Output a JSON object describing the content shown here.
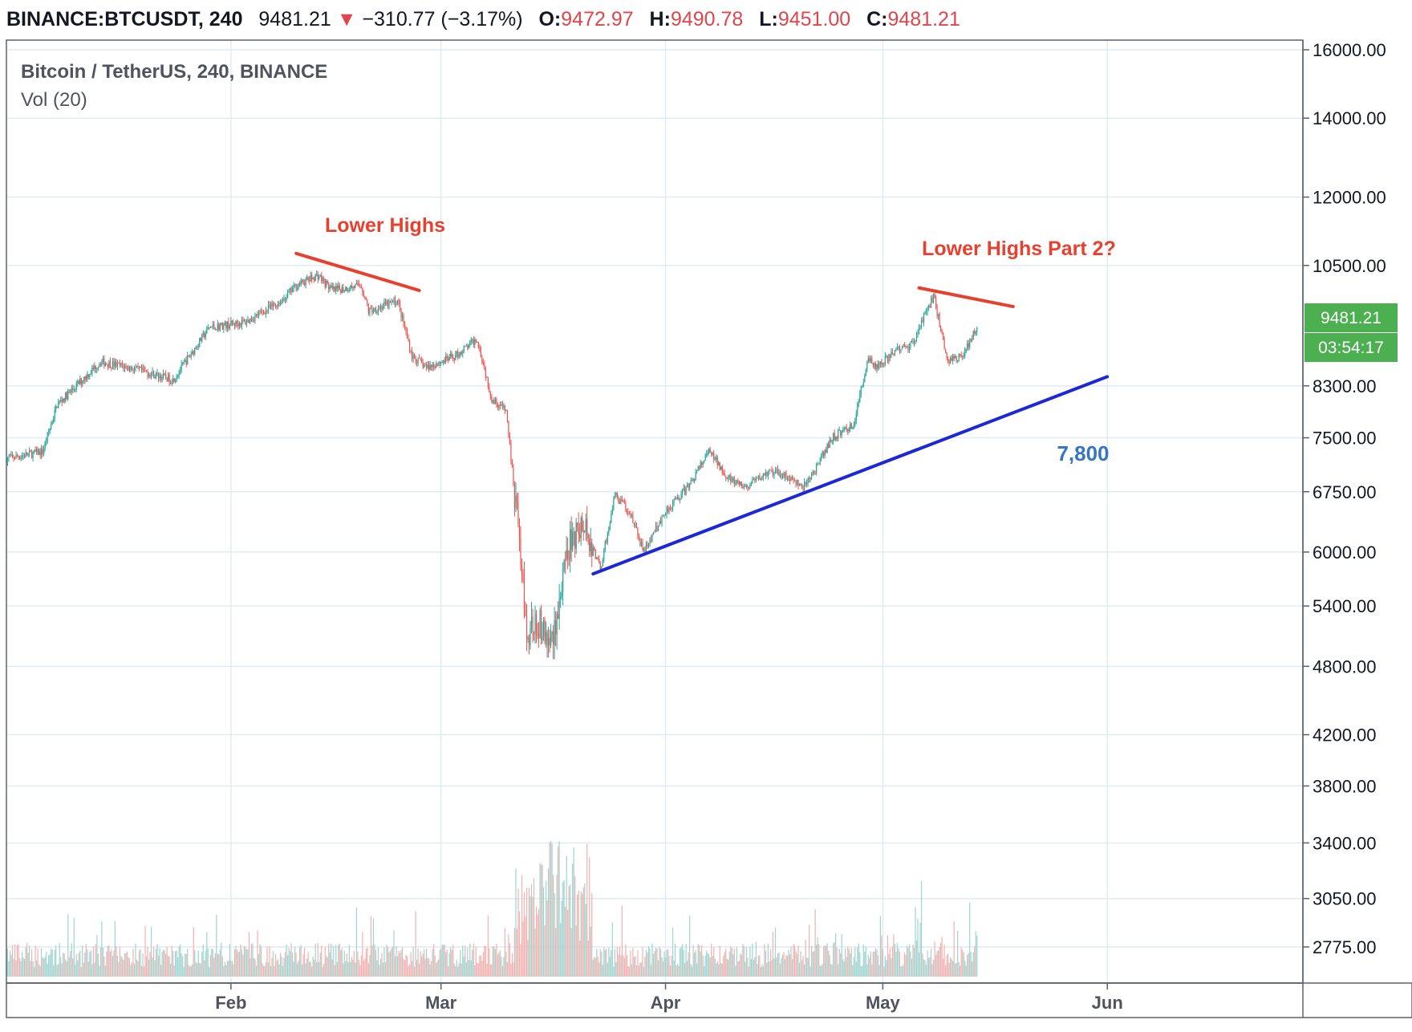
{
  "header": {
    "symbol": "BINANCE:BTCUSDT, 240",
    "last": "9481.21",
    "change": "−310.77 (−3.17%)",
    "open_label": "O:",
    "open": "9472.97",
    "high_label": "H:",
    "high": "9490.78",
    "low_label": "L:",
    "low": "9451.00",
    "close_label": "C:",
    "close": "9481.21"
  },
  "legend": {
    "instrument": "Bitcoin / TetherUS, 240, BINANCE",
    "volume": "Vol (20)"
  },
  "chart_data": {
    "type": "candlestick",
    "symbol": "Bitcoin / TetherUS",
    "timeframe": "240",
    "exchange": "BINANCE",
    "y_scale": "log",
    "ylim": [
      2500,
      16000
    ],
    "y_ticks": [
      "16000.00",
      "14000.00",
      "12000.00",
      "10500.00",
      "8300.00",
      "7500.00",
      "6750.00",
      "6000.00",
      "5400.00",
      "4800.00",
      "4200.00",
      "3800.00",
      "3400.00",
      "3050.00",
      "2775.00"
    ],
    "x_ticks": [
      "Feb",
      "Mar",
      "Apr",
      "May",
      "Jun"
    ],
    "x_tick_dates": [
      "2020-02-01",
      "2020-03-01",
      "2020-04-01",
      "2020-05-01",
      "2020-06-01"
    ],
    "x_range": [
      "2020-01-01",
      "2020-06-28"
    ],
    "grid": true,
    "price_series": {
      "name": "",
      "x": [
        "2020-01-01",
        "2020-01-06",
        "2020-01-08",
        "2020-01-14",
        "2020-01-18",
        "2020-01-24",
        "2020-01-29",
        "2020-02-03",
        "2020-02-08",
        "2020-02-10",
        "2020-02-13",
        "2020-02-15",
        "2020-02-19",
        "2020-02-20",
        "2020-02-24",
        "2020-02-26",
        "2020-02-28",
        "2020-03-03",
        "2020-03-06",
        "2020-03-08",
        "2020-03-10",
        "2020-03-12",
        "2020-03-13",
        "2020-03-14",
        "2020-03-16",
        "2020-03-17",
        "2020-03-19",
        "2020-03-21",
        "2020-03-23",
        "2020-03-25",
        "2020-03-27",
        "2020-03-29",
        "2020-04-01",
        "2020-04-04",
        "2020-04-07",
        "2020-04-10",
        "2020-04-12",
        "2020-04-15",
        "2020-04-17",
        "2020-04-20",
        "2020-04-22",
        "2020-04-24",
        "2020-04-27",
        "2020-04-29",
        "2020-04-30",
        "2020-05-03",
        "2020-05-05",
        "2020-05-08",
        "2020-05-10",
        "2020-05-12",
        "2020-05-14"
      ],
      "y": [
        7200,
        7300,
        8000,
        8700,
        8600,
        8400,
        9300,
        9400,
        9800,
        10100,
        10300,
        10000,
        10100,
        9600,
        9800,
        8800,
        8600,
        8800,
        9100,
        8100,
        7900,
        6000,
        5000,
        5300,
        5000,
        5300,
        6200,
        6300,
        5800,
        6700,
        6500,
        6000,
        6500,
        6800,
        7300,
        6900,
        6800,
        7000,
        7000,
        6800,
        7100,
        7500,
        7700,
        8800,
        8600,
        8900,
        9000,
        9900,
        8700,
        8800,
        9300
      ]
    },
    "volume_series": {
      "name": "Vol (20)"
    },
    "last_price": "9481.21",
    "countdown": "03:54:17",
    "annotations": [
      {
        "text": "Lower Highs",
        "color": "#e8402f",
        "line": {
          "from": [
            "2020-02-10",
            10750
          ],
          "to": [
            "2020-02-27",
            10000
          ]
        }
      },
      {
        "text": "Lower Highs Part 2?",
        "color": "#e8402f",
        "line": {
          "from": [
            "2020-05-06",
            10050
          ],
          "to": [
            "2020-05-19",
            9690
          ]
        }
      },
      {
        "text": "7,800",
        "color": "#3775c4",
        "line": {
          "from": [
            "2020-03-22",
            5750
          ],
          "to": [
            "2020-06-01",
            8450
          ]
        }
      }
    ]
  },
  "colors": {
    "up": "#26a69a",
    "down": "#ef5350",
    "up_vol": "#9fd4cf",
    "down_vol": "#f3b1b0",
    "grid": "#e1ecf2",
    "axis_text": "#131722",
    "tag_bg": "#4caf50",
    "annotation_red": "#e8402f",
    "trendline_blue": "#1c27d6",
    "label_blue": "#3775c4"
  }
}
